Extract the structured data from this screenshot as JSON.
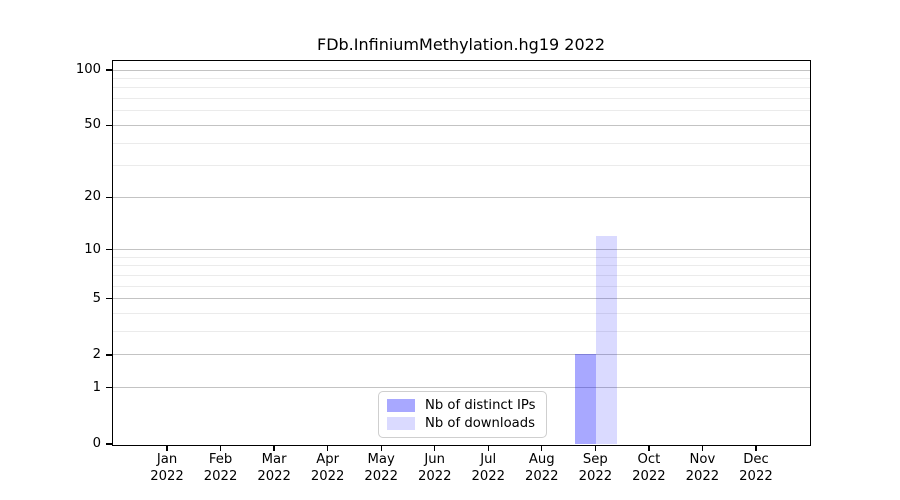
{
  "chart_data": {
    "type": "bar",
    "title": "FDb.InfiniumMethylation.hg19 2022",
    "categories": [
      "Jan",
      "Feb",
      "Mar",
      "Apr",
      "May",
      "Jun",
      "Jul",
      "Aug",
      "Sep",
      "Oct",
      "Nov",
      "Dec"
    ],
    "category_sublabel": "2022",
    "series": [
      {
        "name": "Nb of distinct IPs",
        "color": "rgba(0,0,255,0.34)",
        "color_hex": "#aaaaf9",
        "values": [
          0,
          0,
          0,
          0,
          0,
          0,
          0,
          0,
          2,
          0,
          0,
          0
        ]
      },
      {
        "name": "Nb of downloads",
        "color": "rgba(0,0,255,0.145)",
        "color_hex": "#dbdaf9",
        "values": [
          0,
          0,
          0,
          0,
          0,
          0,
          0,
          0,
          12,
          0,
          0,
          0
        ]
      }
    ],
    "y_axis": {
      "scale": "log1p",
      "major_ticks": [
        0,
        1,
        2,
        5,
        10,
        20,
        50,
        100
      ],
      "minor_gridlines": [
        3,
        4,
        6,
        7,
        8,
        9,
        30,
        40,
        60,
        70,
        80,
        90
      ],
      "max": 112
    },
    "x_axis": {
      "label_lines": 2
    },
    "legend": {
      "position": "bottom-center"
    },
    "grid": true
  }
}
